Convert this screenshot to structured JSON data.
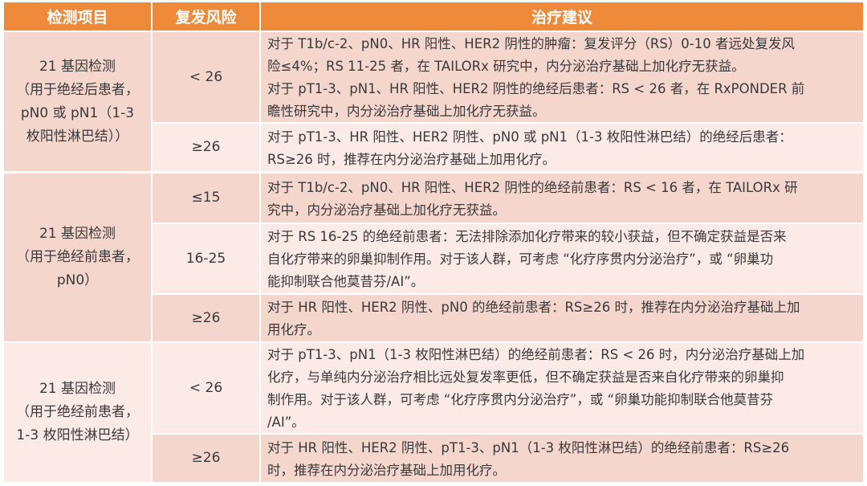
{
  "colors": {
    "header": "#ee8a3a",
    "row_dark": "#f4d6cd",
    "row_light": "#fbeae5"
  },
  "header": {
    "col1": "检测项目",
    "col2": "复发风险",
    "col3": "治疗建议"
  },
  "groups": [
    {
      "lines": [
        "21 基因检测",
        "（用于绝经后患者，",
        "pN0 或 pN1（1-3",
        "枚阳性淋巴结））"
      ]
    },
    {
      "lines": [
        "21 基因检测",
        "（用于绝经前患者，",
        "pN0）"
      ]
    },
    {
      "lines": [
        "21 基因检测",
        "（用于绝经前患者，",
        "1-3 枚阳性淋巴结）"
      ]
    }
  ],
  "rows": [
    {
      "risk": "< 26",
      "lines": [
        "对于 T1b/c-2、pN0、HR 阳性、HER2 阴性的肿瘤：复发评分（RS）0-10 者远处复发风",
        "险≤4%；RS 11-25 者，在 TAILORx 研究中，内分泌治疗基础上加化疗无获益。",
        "对于 pT1-3、pN1、HR 阳性、HER2 阴性的绝经后患者：RS < 26 者，在 RxPONDER 前",
        "瞻性研究中，内分泌治疗基础上加化疗无获益。"
      ]
    },
    {
      "risk": "≥26",
      "lines": [
        "对于 pT1-3、HR 阳性、HER2 阴性、pN0 或 pN1（1-3 枚阳性淋巴结）的绝经后患者：",
        "RS≥26 时，推荐在内分泌治疗基础上加用化疗。"
      ]
    },
    {
      "risk": "≤15",
      "lines": [
        "对于 T1b/c-2、pN0、HR 阳性、HER2 阴性的绝经前患者：RS < 16 者，在 TAILORx 研",
        "究中，内分泌治疗基础上加化疗无获益。"
      ]
    },
    {
      "risk": "16-25",
      "lines": [
        "对于 RS 16-25 的绝经前患者：无法排除添加化疗带来的较小获益，但不确定获益是否来",
        "自化疗带来的卵巢抑制作用。对于该人群，可考虑 “化疗序贯内分泌治疗”，或 “卵巢功",
        "能抑制联合他莫昔芬/AI”。"
      ]
    },
    {
      "risk": "≥26",
      "lines": [
        "对于 HR 阳性、HER2 阴性、pN0 的绝经前患者：RS≥26 时，推荐在内分泌治疗基础上加",
        "用化疗。"
      ]
    },
    {
      "risk": "< 26",
      "lines": [
        "对于 pT1-3、pN1（1-3 枚阳性淋巴结）的绝经前患者：RS < 26 时，内分泌治疗基础上加",
        "化疗，与单纯内分泌治疗相比远处复发率更低，但不确定获益是否来自化疗带来的卵巢抑",
        "制作用。对于该人群，可考虑 “化疗序贯内分泌治疗”，或 “卵巢功能抑制联合他莫昔芬",
        "/AI”。"
      ]
    },
    {
      "risk": "≥26",
      "lines": [
        "对于 HR 阳性、HER2 阴性、pT1-3、pN1（1-3 枚阳性淋巴结）的绝经前患者：RS≥26",
        "时，推荐在内分泌治疗基础上加用化疗。"
      ]
    }
  ]
}
